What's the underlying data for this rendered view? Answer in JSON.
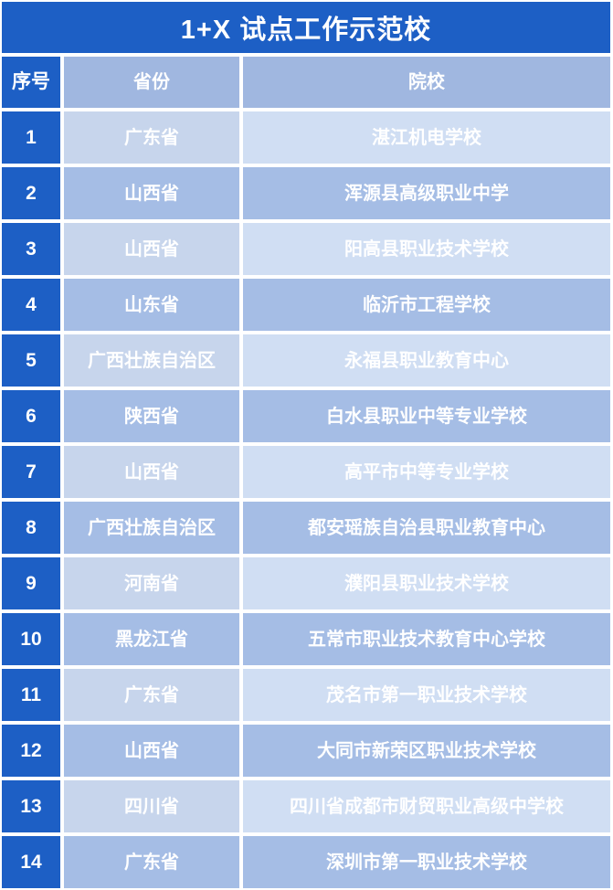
{
  "title": "1+X 试点工作示范校",
  "table": {
    "headers": {
      "index": "序号",
      "province": "省份",
      "school": "院校"
    },
    "rows": [
      {
        "index": "1",
        "province": "广东省",
        "school": "湛江机电学校"
      },
      {
        "index": "2",
        "province": "山西省",
        "school": "浑源县高级职业中学"
      },
      {
        "index": "3",
        "province": "山西省",
        "school": "阳高县职业技术学校"
      },
      {
        "index": "4",
        "province": "山东省",
        "school": "临沂市工程学校"
      },
      {
        "index": "5",
        "province": "广西壮族自治区",
        "school": "永福县职业教育中心"
      },
      {
        "index": "6",
        "province": "陕西省",
        "school": "白水县职业中等专业学校"
      },
      {
        "index": "7",
        "province": "山西省",
        "school": "高平市中等专业学校"
      },
      {
        "index": "8",
        "province": "广西壮族自治区",
        "school": "都安瑶族自治县职业教育中心"
      },
      {
        "index": "9",
        "province": "河南省",
        "school": "濮阳县职业技术学校"
      },
      {
        "index": "10",
        "province": "黑龙江省",
        "school": "五常市职业技术教育中心学校"
      },
      {
        "index": "11",
        "province": "广东省",
        "school": "茂名市第一职业技术学校"
      },
      {
        "index": "12",
        "province": "山西省",
        "school": "大同市新荣区职业技术学校"
      },
      {
        "index": "13",
        "province": "四川省",
        "school": "四川省成都市财贸职业高级中学校"
      },
      {
        "index": "14",
        "province": "广东省",
        "school": "深圳市第一职业技术学校"
      }
    ]
  },
  "colors": {
    "primary_blue": "#1d5fc5",
    "header_cell_blue": "#a0b7e0",
    "even_row_blue": "#a5bde5",
    "odd_row_province_blue": "#c7d5ec",
    "odd_row_school_blue": "#d0def3",
    "text": "#ffffff",
    "gutter": "#ffffff"
  }
}
